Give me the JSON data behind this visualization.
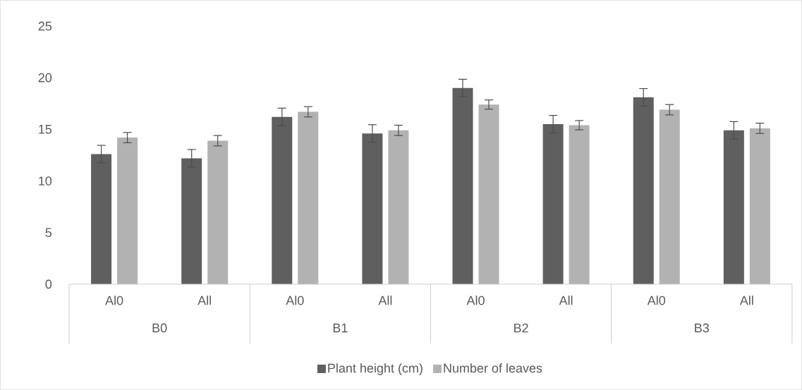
{
  "chart_data": {
    "type": "bar",
    "categories": [
      "Al0",
      "All",
      "Al0",
      "All",
      "Al0",
      "All",
      "Al0",
      "All"
    ],
    "series": [
      {
        "name": "Plant height (cm)",
        "color": "#5f5f5f",
        "values": [
          12.6,
          12.2,
          16.2,
          14.6,
          19.0,
          15.5,
          18.1,
          14.9
        ],
        "errors": [
          0.85,
          0.85,
          0.85,
          0.85,
          0.85,
          0.85,
          0.85,
          0.85
        ]
      },
      {
        "name": "Number of leaves",
        "color": "#b2b2b2",
        "values": [
          14.2,
          13.9,
          16.7,
          14.9,
          17.4,
          15.4,
          16.9,
          15.1
        ],
        "errors": [
          0.5,
          0.5,
          0.5,
          0.5,
          0.45,
          0.45,
          0.5,
          0.5
        ]
      }
    ],
    "annotations": [
      "B0",
      "B1",
      "B2",
      "B3"
    ],
    "ylim": [
      0,
      25
    ],
    "yticks": [
      0,
      5,
      10,
      15,
      20,
      25
    ],
    "legend": "bottom"
  }
}
